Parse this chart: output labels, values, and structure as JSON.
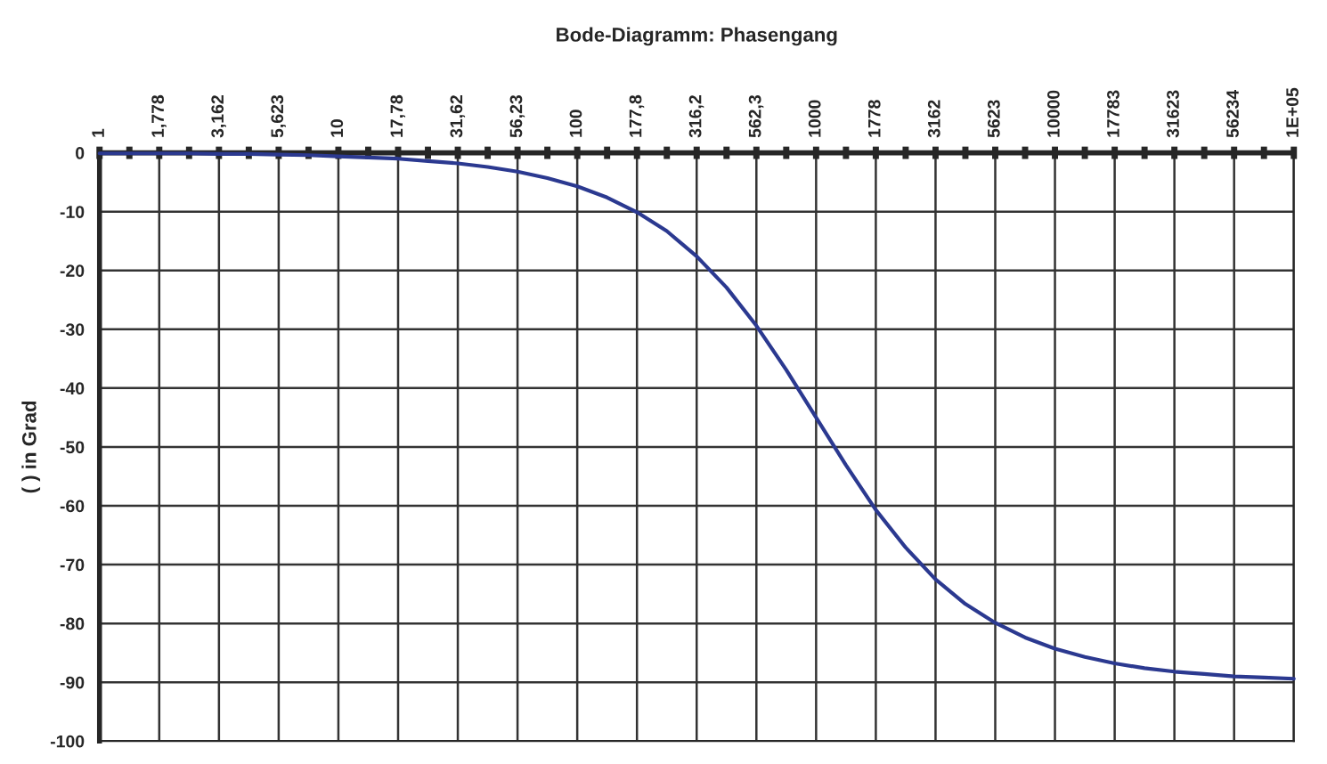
{
  "chart_data": {
    "type": "line",
    "title": "Bode-Diagramm: Phasengang",
    "ylabel": "( ) in Grad",
    "categories": [
      "1",
      null,
      "1,778",
      null,
      "3,162",
      null,
      "5,623",
      null,
      "10",
      null,
      "17,78",
      null,
      "31,62",
      null,
      "56,23",
      null,
      "100",
      null,
      "177,8",
      null,
      "316,2",
      null,
      "562,3",
      null,
      "1000",
      null,
      "1778",
      null,
      "3162",
      null,
      "5623",
      null,
      "10000",
      null,
      "17783",
      null,
      "31623",
      null,
      "56234",
      null,
      "1E+05"
    ],
    "series": [
      {
        "color": "#2b3990",
        "values": [
          -0.1,
          -0.1,
          -0.1,
          -0.1,
          -0.2,
          -0.2,
          -0.3,
          -0.4,
          -0.6,
          -0.8,
          -1.0,
          -1.4,
          -1.8,
          -2.4,
          -3.2,
          -4.3,
          -5.7,
          -7.6,
          -10.1,
          -13.3,
          -17.6,
          -22.9,
          -29.4,
          -36.9,
          -45,
          -53.1,
          -60.7,
          -67.1,
          -72.5,
          -76.7,
          -79.9,
          -82.4,
          -84.3,
          -85.7,
          -86.8,
          -87.6,
          -88.2,
          -88.6,
          -89.0,
          -89.2,
          -89.4
        ]
      }
    ],
    "ylim": [
      -100,
      0
    ],
    "yticks": [
      -100,
      -90,
      -80,
      -70,
      -60,
      -50,
      -40,
      -30,
      -20,
      -10,
      0
    ],
    "grid": true,
    "legend": false,
    "marker": "none",
    "line_style": "solid"
  }
}
